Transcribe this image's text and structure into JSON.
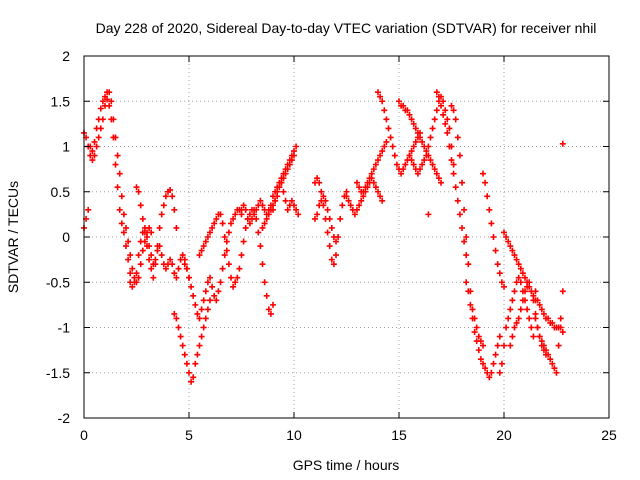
{
  "chart_data": {
    "type": "scatter",
    "title": "Day 228 of 2020, Sidereal Day-to-day VTEC variation (SDTVAR) for receiver nhil",
    "xlabel": "GPS time / hours",
    "ylabel": "SDTVAR / TECUs",
    "xlim": [
      0,
      25
    ],
    "ylim": [
      -2,
      2
    ],
    "x_ticks": [
      "0",
      "5",
      "10",
      "15",
      "20",
      "25"
    ],
    "y_ticks": [
      "2",
      "1.5",
      "1",
      "0.5",
      "0",
      "-0.5",
      "-1",
      "-1.5",
      "-2"
    ],
    "grid": true,
    "marker": "plus",
    "color": "#ff0000",
    "series": [
      {
        "name": "arc1",
        "x": [
          0.0,
          0.1,
          0.2,
          0.3,
          0.4,
          0.5,
          0.6,
          0.7,
          0.8,
          0.9,
          1.0,
          1.1,
          1.2,
          1.3,
          1.4,
          1.5,
          1.6,
          1.7,
          1.8,
          1.9,
          2.0,
          2.1,
          2.2,
          2.3,
          2.4,
          2.5,
          2.6,
          2.7,
          2.8,
          2.9,
          3.0,
          3.1,
          3.2
        ],
        "y": [
          1.15,
          1.1,
          1.0,
          0.9,
          0.95,
          1.05,
          1.2,
          1.3,
          1.42,
          1.5,
          1.55,
          1.6,
          1.6,
          1.5,
          1.3,
          1.1,
          0.9,
          0.7,
          0.45,
          0.25,
          0.1,
          -0.05,
          -0.2,
          -0.35,
          -0.45,
          -0.5,
          -0.45,
          -0.3,
          -0.15,
          -0.05,
          0.05,
          0.1,
          0.05
        ]
      },
      {
        "name": "arc2",
        "x": [
          0.0,
          0.1,
          0.2,
          0.3,
          0.4,
          0.5,
          0.6,
          0.7,
          0.8,
          0.9,
          1.0,
          1.1,
          1.2,
          1.3,
          1.4,
          1.5,
          1.6,
          1.7,
          1.8,
          1.9,
          2.0,
          2.1,
          2.2
        ],
        "y": [
          0.1,
          0.2,
          0.3,
          1.0,
          0.85,
          0.9,
          1.0,
          1.1,
          1.2,
          1.3,
          1.45,
          1.52,
          1.45,
          1.3,
          1.1,
          0.8,
          0.55,
          0.3,
          0.15,
          0.05,
          -0.1,
          -0.25,
          -0.4
        ]
      },
      {
        "name": "arc3",
        "x": [
          2.5,
          2.6,
          2.7,
          2.8,
          2.9,
          3.0,
          3.1,
          3.2,
          3.3,
          3.4,
          3.5,
          3.6,
          3.7,
          3.8,
          3.9,
          4.0,
          4.1,
          4.2,
          4.3,
          4.4
        ],
        "y": [
          0.55,
          0.5,
          0.35,
          0.2,
          0.05,
          -0.1,
          -0.25,
          -0.35,
          -0.45,
          -0.3,
          -0.1,
          0.1,
          0.25,
          0.35,
          0.45,
          0.5,
          0.52,
          0.45,
          0.3,
          0.1
        ]
      },
      {
        "name": "arc4",
        "x": [
          2.2,
          2.3,
          2.4,
          2.5,
          2.6,
          2.7,
          2.8,
          2.9,
          3.0,
          3.1,
          3.2,
          3.3,
          3.4,
          3.5,
          3.6,
          3.7,
          3.8,
          3.9,
          4.0,
          4.1,
          4.2,
          4.3,
          4.4,
          4.5,
          4.6,
          4.7,
          4.8,
          4.9,
          5.0
        ],
        "y": [
          -0.5,
          -0.55,
          -0.5,
          -0.4,
          -0.2,
          -0.05,
          0.05,
          0.1,
          0.0,
          -0.1,
          -0.2,
          -0.3,
          -0.25,
          -0.15,
          -0.1,
          -0.2,
          -0.3,
          -0.35,
          -0.3,
          -0.25,
          -0.3,
          -0.4,
          -0.45,
          -0.35,
          -0.25,
          -0.2,
          -0.25,
          -0.35,
          -0.45
        ]
      },
      {
        "name": "arc5",
        "x": [
          4.3,
          4.4,
          4.5,
          4.6,
          4.7,
          4.8,
          4.9,
          5.0,
          5.1,
          5.2,
          5.3,
          5.4,
          5.5,
          5.6,
          5.7,
          5.8,
          5.9,
          6.0
        ],
        "y": [
          -0.85,
          -0.9,
          -1.0,
          -1.1,
          -1.2,
          -1.3,
          -1.4,
          -1.5,
          -1.6,
          -1.55,
          -1.4,
          -1.3,
          -1.2,
          -1.1,
          -1.0,
          -0.9,
          -0.8,
          -0.7
        ]
      },
      {
        "name": "arc6",
        "x": [
          4.8,
          4.9,
          5.0,
          5.1,
          5.2,
          5.3,
          5.4,
          5.5,
          5.6,
          5.7,
          5.8,
          5.9,
          6.0,
          6.1,
          6.2,
          6.3,
          6.4,
          6.5,
          6.6,
          6.7,
          6.8,
          6.9,
          7.0,
          7.1,
          7.2,
          7.3,
          7.4,
          7.5
        ],
        "y": [
          -0.3,
          -0.35,
          -0.45,
          -0.55,
          -0.65,
          -0.75,
          -0.85,
          -0.9,
          -0.8,
          -0.7,
          -0.6,
          -0.5,
          -0.45,
          -0.55,
          -0.65,
          -0.7,
          -0.6,
          -0.5,
          -0.35,
          -0.2,
          -0.05,
          0.05,
          0.15,
          0.2,
          0.25,
          0.3,
          0.3,
          0.25
        ]
      },
      {
        "name": "arc7",
        "x": [
          5.5,
          5.6,
          5.7,
          5.8,
          5.9,
          6.0,
          6.1,
          6.2,
          6.3,
          6.4,
          6.5,
          6.6,
          6.7,
          6.8,
          6.9,
          7.0,
          7.1
        ],
        "y": [
          -0.2,
          -0.15,
          -0.1,
          -0.05,
          0.0,
          0.05,
          0.1,
          0.15,
          0.2,
          0.25,
          0.25,
          0.15,
          0.0,
          -0.15,
          -0.3,
          -0.45,
          -0.55
        ]
      },
      {
        "name": "arc8",
        "x": [
          7.2,
          7.3,
          7.4,
          7.5,
          7.6,
          7.7,
          7.8,
          7.9,
          8.0,
          8.1,
          8.2,
          8.3,
          8.4,
          8.5,
          8.6,
          8.7,
          8.8,
          8.9,
          9.0
        ],
        "y": [
          -0.5,
          -0.45,
          -0.35,
          -0.2,
          -0.05,
          0.1,
          0.2,
          0.25,
          0.3,
          0.3,
          0.2,
          0.05,
          -0.1,
          -0.3,
          -0.5,
          -0.65,
          -0.8,
          -0.85,
          -0.75
        ]
      },
      {
        "name": "arc9",
        "x": [
          7.5,
          7.6,
          7.7,
          7.8,
          7.9,
          8.0,
          8.1,
          8.2,
          8.3,
          8.4,
          8.5,
          8.6,
          8.7,
          8.8,
          8.9,
          9.0,
          9.1,
          9.2,
          9.3,
          9.4,
          9.5,
          9.6,
          9.7,
          9.8,
          9.9,
          10.0
        ],
        "y": [
          0.3,
          0.35,
          0.3,
          0.2,
          0.15,
          0.2,
          0.25,
          0.3,
          0.35,
          0.4,
          0.35,
          0.3,
          0.25,
          0.3,
          0.35,
          0.45,
          0.5,
          0.55,
          0.6,
          0.65,
          0.7,
          0.75,
          0.8,
          0.85,
          0.9,
          0.95
        ]
      },
      {
        "name": "arc10",
        "x": [
          8.5,
          8.6,
          8.7,
          8.8,
          8.9,
          9.0,
          9.1,
          9.2,
          9.3,
          9.4,
          9.5,
          9.6,
          9.7,
          9.8,
          9.9,
          10.0,
          10.1
        ],
        "y": [
          0.1,
          0.15,
          0.2,
          0.25,
          0.3,
          0.35,
          0.4,
          0.5,
          0.55,
          0.6,
          0.65,
          0.7,
          0.75,
          0.8,
          0.85,
          0.9,
          1.0
        ]
      },
      {
        "name": "arc11",
        "x": [
          9.0,
          9.1,
          9.2,
          9.3,
          9.4,
          9.5,
          9.6,
          9.7,
          9.8,
          9.9,
          10.0,
          10.1,
          10.2
        ],
        "y": [
          0.3,
          0.4,
          0.45,
          0.55,
          0.6,
          0.5,
          0.4,
          0.3,
          0.35,
          0.4,
          0.35,
          0.3,
          0.25
        ]
      },
      {
        "name": "arc12",
        "x": [
          11.0,
          11.1,
          11.2,
          11.3,
          11.4,
          11.5,
          11.6,
          11.7,
          11.8,
          11.9,
          12.0,
          12.1,
          12.2,
          12.3,
          12.4,
          12.5
        ],
        "y": [
          0.6,
          0.65,
          0.6,
          0.5,
          0.35,
          0.2,
          0.05,
          -0.1,
          -0.25,
          -0.3,
          -0.2,
          0.0,
          0.2,
          0.35,
          0.45,
          0.5
        ]
      },
      {
        "name": "arc13",
        "x": [
          11.0,
          11.1,
          11.2,
          11.3,
          11.4,
          11.5,
          11.6,
          11.7,
          11.8,
          11.9,
          12.0
        ],
        "y": [
          0.2,
          0.25,
          0.35,
          0.4,
          0.45,
          0.4,
          0.3,
          0.2,
          0.1,
          0.0,
          -0.05
        ]
      },
      {
        "name": "arc14",
        "x": [
          12.5,
          12.6,
          12.7,
          12.8,
          12.9,
          13.0,
          13.1,
          13.2,
          13.3,
          13.4,
          13.5,
          13.6,
          13.7,
          13.8,
          13.9,
          14.0,
          14.1,
          14.2,
          14.3,
          14.4
        ],
        "y": [
          0.45,
          0.4,
          0.35,
          0.3,
          0.25,
          0.3,
          0.35,
          0.4,
          0.5,
          0.55,
          0.6,
          0.65,
          0.7,
          0.75,
          0.8,
          0.85,
          0.9,
          0.95,
          1.0,
          1.05
        ]
      },
      {
        "name": "arc15",
        "x": [
          13.0,
          13.1,
          13.2,
          13.3,
          13.4,
          13.5,
          13.6,
          13.7,
          13.8,
          13.9,
          14.0,
          14.1,
          14.2
        ],
        "y": [
          0.6,
          0.55,
          0.5,
          0.45,
          0.5,
          0.55,
          0.6,
          0.65,
          0.6,
          0.55,
          0.5,
          0.45,
          0.4
        ]
      },
      {
        "name": "arc16",
        "x": [
          14.0,
          14.1,
          14.2,
          14.3,
          14.4,
          14.5,
          14.6,
          14.7,
          14.8,
          14.9,
          15.0,
          15.1,
          15.2,
          15.3,
          15.4,
          15.5,
          15.6,
          15.7,
          15.8,
          15.9,
          16.0
        ],
        "y": [
          1.6,
          1.55,
          1.5,
          1.4,
          1.3,
          1.2,
          1.1,
          1.0,
          0.9,
          0.8,
          0.75,
          0.7,
          0.75,
          0.8,
          0.85,
          0.9,
          0.95,
          1.0,
          1.05,
          1.1,
          1.15
        ]
      },
      {
        "name": "arc17",
        "x": [
          15.0,
          15.1,
          15.2,
          15.3,
          15.4,
          15.5,
          15.6,
          15.7,
          15.8,
          15.9,
          16.0,
          16.1,
          16.2,
          16.3,
          16.4,
          16.5,
          16.6,
          16.7,
          16.8,
          16.9,
          17.0
        ],
        "y": [
          1.5,
          1.45,
          1.45,
          1.4,
          1.4,
          1.35,
          1.3,
          1.25,
          1.2,
          1.15,
          1.1,
          1.05,
          1.0,
          0.95,
          0.9,
          0.85,
          0.8,
          0.75,
          0.7,
          0.65,
          0.6
        ]
      },
      {
        "name": "arc18",
        "x": [
          15.5,
          15.6,
          15.7,
          15.8,
          15.9,
          16.0,
          16.1,
          16.2,
          16.3,
          16.4,
          16.5,
          16.6,
          16.7,
          16.8,
          16.9,
          17.0,
          17.1,
          17.2,
          17.3,
          17.4,
          17.5,
          17.6
        ],
        "y": [
          0.9,
          0.85,
          0.8,
          0.75,
          0.7,
          0.75,
          0.8,
          0.85,
          0.9,
          1.0,
          1.1,
          1.2,
          1.3,
          1.4,
          1.5,
          1.55,
          1.5,
          1.4,
          1.3,
          1.2,
          1.0,
          0.8
        ]
      },
      {
        "name": "arc19",
        "x": [
          16.8,
          16.9,
          17.0,
          17.1,
          17.2,
          17.3,
          17.4,
          17.5,
          17.6,
          17.7,
          17.8,
          17.9,
          18.0,
          18.1,
          18.2
        ],
        "y": [
          1.6,
          1.55,
          1.45,
          1.35,
          1.25,
          1.15,
          1.0,
          0.85,
          0.7,
          0.55,
          0.4,
          0.25,
          0.1,
          -0.05,
          -0.2
        ]
      },
      {
        "name": "arc20",
        "x": [
          17.5,
          17.6,
          17.7,
          17.8,
          17.9,
          18.0,
          18.1,
          18.2,
          18.3,
          18.4,
          18.5,
          18.6,
          18.7,
          18.8,
          18.9,
          19.0
        ],
        "y": [
          1.45,
          1.4,
          1.3,
          1.1,
          0.9,
          0.6,
          0.3,
          0.0,
          -0.3,
          -0.6,
          -0.8,
          -0.9,
          -1.0,
          -1.1,
          -1.15,
          -1.2
        ]
      },
      {
        "name": "arc21",
        "x": [
          18.2,
          18.3,
          18.4,
          18.5,
          18.6,
          18.7,
          18.8,
          18.9,
          19.0,
          19.1,
          19.2,
          19.3,
          19.4,
          19.5,
          19.6,
          19.7,
          19.8
        ],
        "y": [
          -0.5,
          -0.6,
          -0.75,
          -0.9,
          -1.05,
          -1.15,
          -1.25,
          -1.35,
          -1.4,
          -1.45,
          -1.5,
          -1.55,
          -1.5,
          -1.4,
          -1.3,
          -1.2,
          -1.1
        ]
      },
      {
        "name": "arc22",
        "x": [
          19.0,
          19.1,
          19.2,
          19.3,
          19.4,
          19.5,
          19.6,
          19.7,
          19.8,
          19.9,
          20.0
        ],
        "y": [
          0.7,
          0.6,
          0.45,
          0.3,
          0.15,
          0.0,
          -0.15,
          -0.3,
          -0.4,
          -0.5,
          -0.55
        ]
      },
      {
        "name": "arc23",
        "x": [
          20.0,
          20.1,
          20.2,
          20.3,
          20.4,
          20.5,
          20.6,
          20.7,
          20.8,
          20.9,
          21.0,
          21.1,
          21.2,
          21.3,
          21.4,
          21.5
        ],
        "y": [
          0.05,
          0.0,
          -0.05,
          -0.1,
          -0.15,
          -0.2,
          -0.25,
          -0.3,
          -0.35,
          -0.4,
          -0.45,
          -0.5,
          -0.55,
          -0.6,
          -0.65,
          -0.7
        ]
      },
      {
        "name": "arc24",
        "x": [
          19.8,
          19.9,
          20.0,
          20.1,
          20.2,
          20.3,
          20.4,
          20.5,
          20.6,
          20.7,
          20.8,
          20.9,
          21.0,
          21.1,
          21.2,
          21.3,
          21.4
        ],
        "y": [
          -1.5,
          -1.4,
          -1.2,
          -1.0,
          -0.9,
          -0.8,
          -0.7,
          -0.6,
          -0.5,
          -0.45,
          -0.5,
          -0.6,
          -0.7,
          -0.8,
          -0.9,
          -1.0,
          -1.1
        ]
      },
      {
        "name": "arc25",
        "x": [
          20.3,
          20.4,
          20.5,
          20.6,
          20.7,
          20.8,
          20.9,
          21.0,
          21.1,
          21.2,
          21.3,
          21.4,
          21.5,
          21.6,
          21.7,
          21.8,
          21.9,
          22.0
        ],
        "y": [
          -1.2,
          -1.1,
          -1.0,
          -0.95,
          -0.9,
          -0.8,
          -0.7,
          -0.6,
          -0.55,
          -0.5,
          -0.6,
          -0.7,
          -0.85,
          -1.0,
          -1.1,
          -1.2,
          -1.25,
          -1.3
        ]
      },
      {
        "name": "arc26",
        "x": [
          21.5,
          21.6,
          21.7,
          21.8,
          21.9,
          22.0,
          22.1,
          22.2,
          22.3,
          22.4,
          22.5,
          22.6,
          22.7,
          22.8
        ],
        "y": [
          -0.9,
          -1.0,
          -1.1,
          -1.15,
          -1.2,
          -1.25,
          -1.3,
          -1.35,
          -1.4,
          -1.45,
          -1.5,
          -1.2,
          -0.9,
          -0.6
        ]
      },
      {
        "name": "arc27",
        "x": [
          21.5,
          21.6,
          21.7,
          21.8,
          21.9,
          22.0,
          22.1,
          22.2,
          22.3,
          22.4,
          22.5,
          22.6,
          22.7,
          22.8
        ],
        "y": [
          -0.6,
          -0.7,
          -0.75,
          -0.8,
          -0.85,
          -0.9,
          -0.9,
          -0.95,
          -0.95,
          -1.0,
          -1.0,
          -1.0,
          -1.0,
          -1.05
        ]
      },
      {
        "name": "isolated",
        "x": [
          22.8,
          16.4
        ],
        "y": [
          1.03,
          0.25
        ]
      }
    ]
  }
}
